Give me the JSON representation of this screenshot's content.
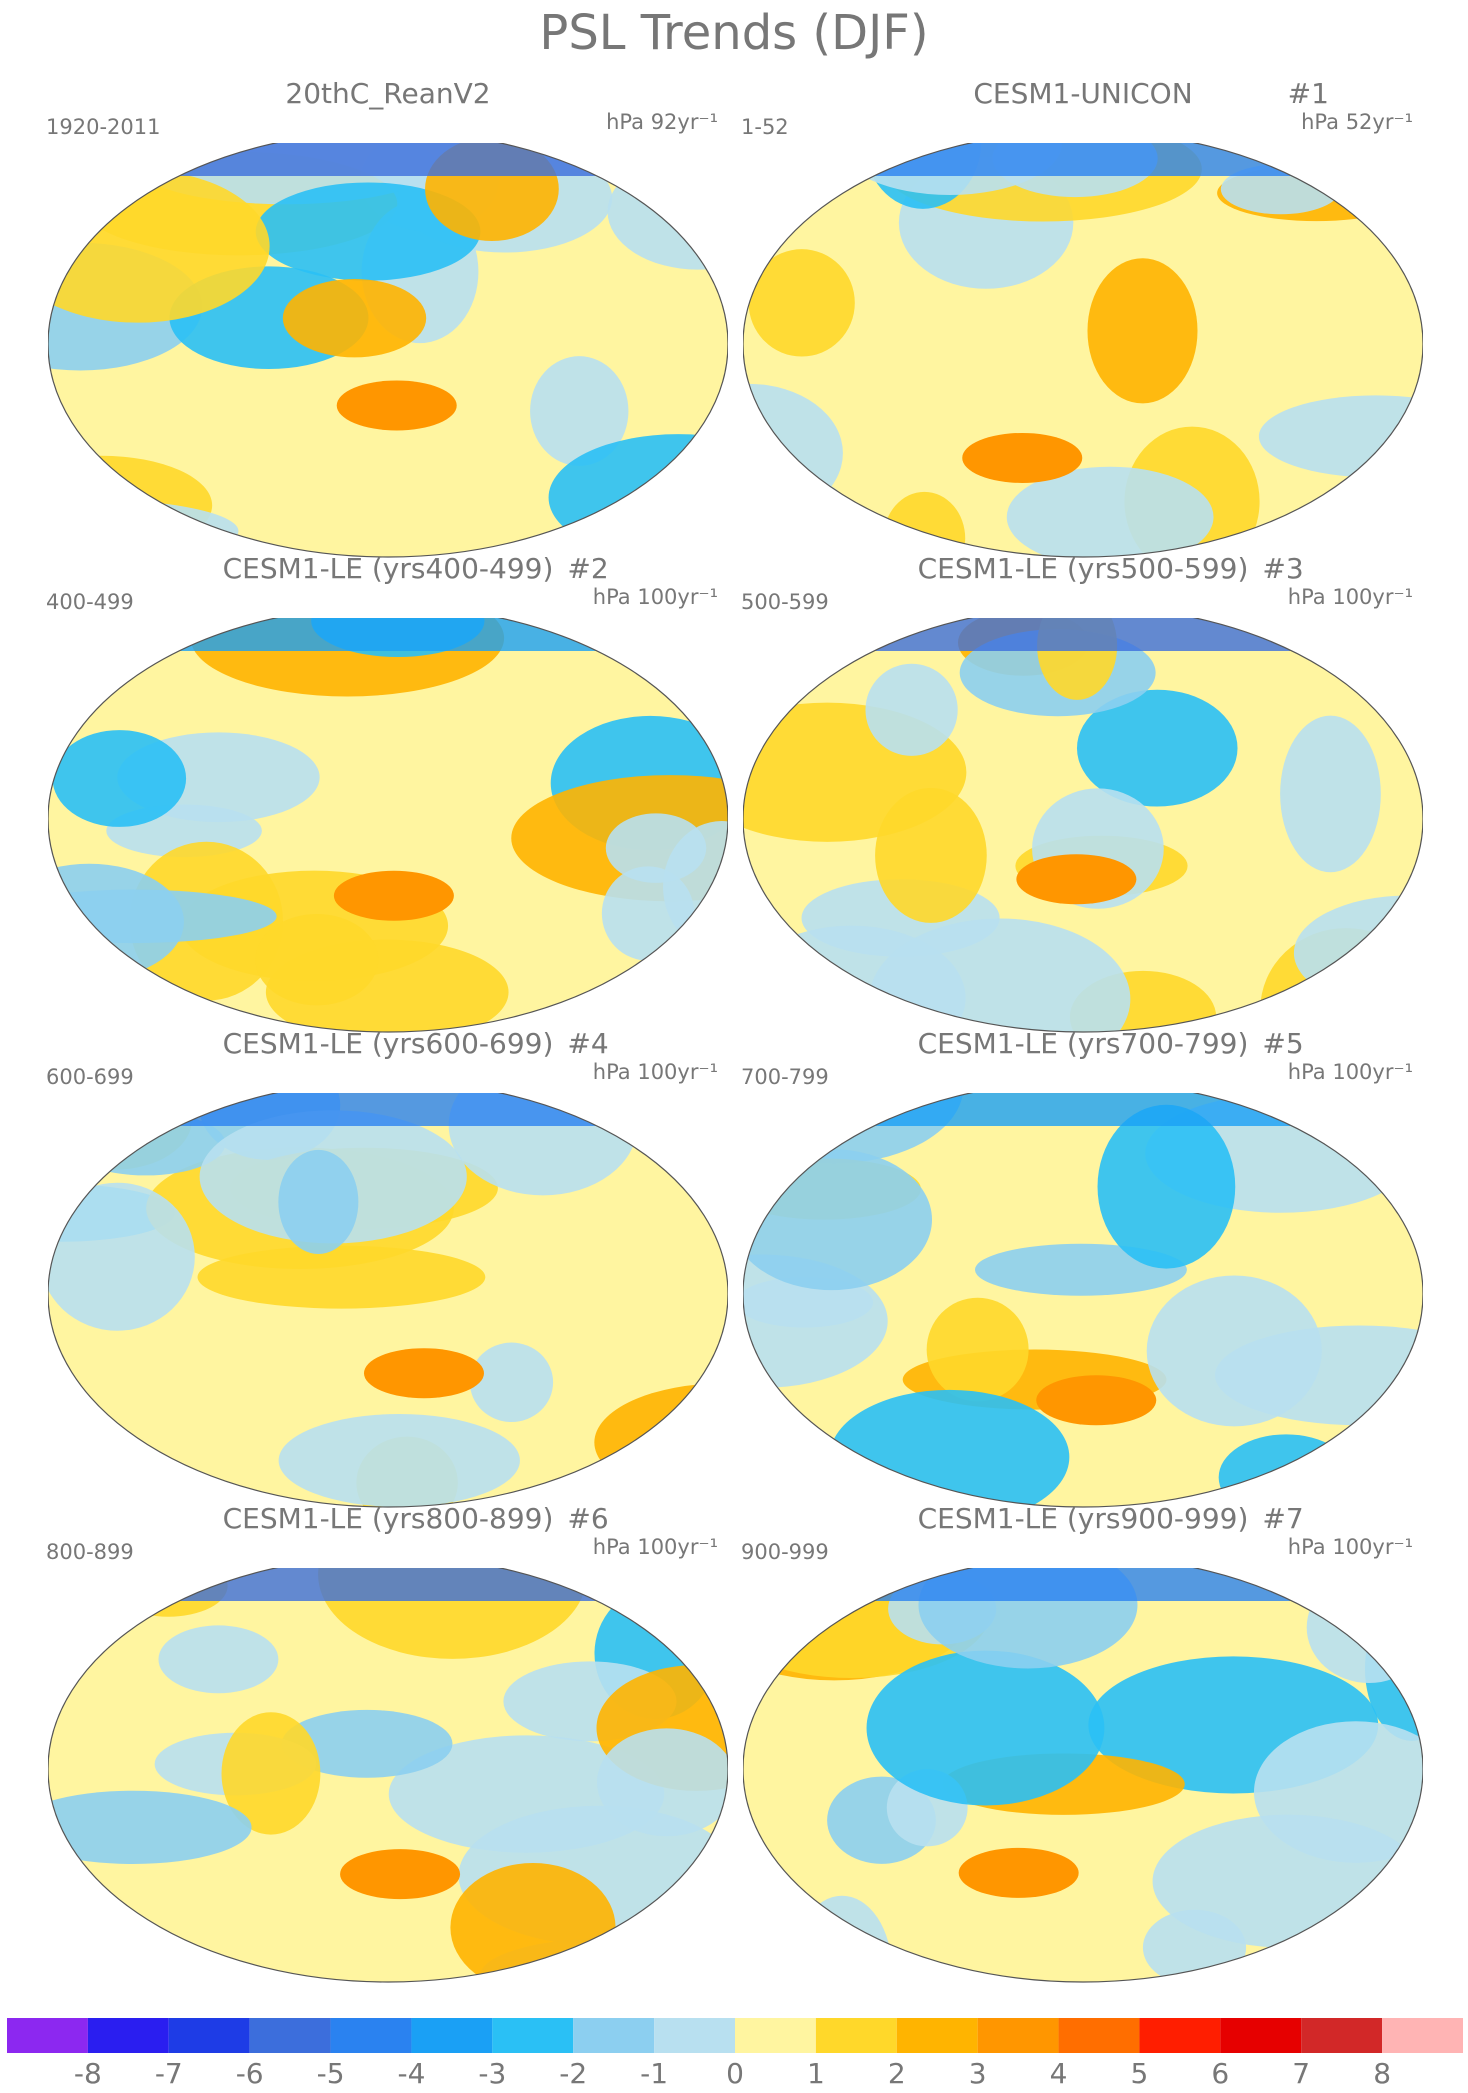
{
  "title": "PSL Trends (DJF)",
  "panels": [
    {
      "title": "20thC_ReanV2",
      "period": "1920-2011",
      "units": "hPa 92yr⁻¹"
    },
    {
      "title": "CESM1-UNICON",
      "tag": "#1",
      "period": "1-52",
      "units": "hPa 52yr⁻¹"
    },
    {
      "title": "CESM1-LE (yrs400-499)",
      "tag": "#2",
      "period": "400-499",
      "units": "hPa 100yr⁻¹"
    },
    {
      "title": "CESM1-LE (yrs500-599)",
      "tag": "#3",
      "period": "500-599",
      "units": "hPa 100yr⁻¹"
    },
    {
      "title": "CESM1-LE (yrs600-699)",
      "tag": "#4",
      "period": "600-699",
      "units": "hPa 100yr⁻¹"
    },
    {
      "title": "CESM1-LE (yrs700-799)",
      "tag": "#5",
      "period": "700-799",
      "units": "hPa 100yr⁻¹"
    },
    {
      "title": "CESM1-LE (yrs800-899)",
      "tag": "#6",
      "period": "800-899",
      "units": "hPa 100yr⁻¹"
    },
    {
      "title": "CESM1-LE (yrs900-999)",
      "tag": "#7",
      "period": "900-999",
      "units": "hPa 100yr⁻¹"
    }
  ],
  "colorbar": {
    "colors": [
      "#8c28f0",
      "#2a1ef0",
      "#1e3ce6",
      "#3c6edc",
      "#2a82f0",
      "#1aa0f5",
      "#2ac0f5",
      "#8ccff0",
      "#b8e0f0",
      "#fff5a0",
      "#ffd82a",
      "#ffb400",
      "#ff9600",
      "#ff6e00",
      "#ff1e00",
      "#e60000",
      "#d22828",
      "#ffb4b4"
    ],
    "ticks": [
      -8,
      -7,
      -6,
      -5,
      -4,
      -3,
      -2,
      -1,
      0,
      1,
      2,
      3,
      4,
      5,
      6,
      7,
      8
    ]
  }
}
